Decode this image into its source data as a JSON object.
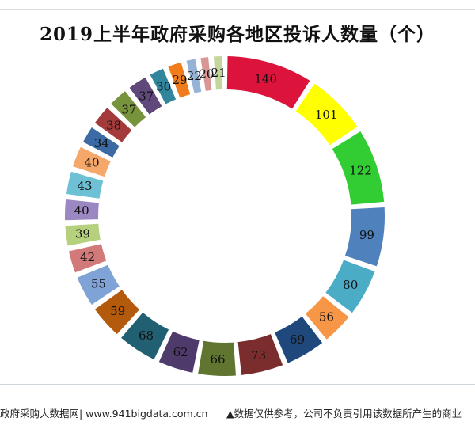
{
  "chart_data": {
    "type": "pie",
    "variant": "donut",
    "title": "2019上半年政府采购各地区投诉人数量（个）",
    "values": [
      140,
      101,
      122,
      99,
      80,
      56,
      69,
      73,
      66,
      62,
      68,
      59,
      55,
      42,
      39,
      40,
      43,
      40,
      34,
      38,
      37,
      37,
      30,
      29,
      22,
      20,
      21
    ],
    "colors": [
      "#dc143c",
      "#ffff00",
      "#32cd32",
      "#4f81bd",
      "#4bacc6",
      "#f79646",
      "#1f497d",
      "#7b2c2c",
      "#5f7530",
      "#4f3b6b",
      "#215f73",
      "#b35a0d",
      "#7fa3d6",
      "#d27a7a",
      "#b5d17e",
      "#9b88c2",
      "#6ec0d4",
      "#f6a86a",
      "#3c6aa5",
      "#a33b3b",
      "#77933c",
      "#60497a",
      "#31859c",
      "#f07c1c",
      "#95b3d7",
      "#d99694",
      "#c3d69b"
    ],
    "legend": "none",
    "data_labels": "on-slice"
  },
  "footer": {
    "source": "政府采购大数据网| www.941bigdata.com.cn",
    "disclaimer": "▲数据仅供参考，公司不负责引用该数据所产生的商业"
  }
}
